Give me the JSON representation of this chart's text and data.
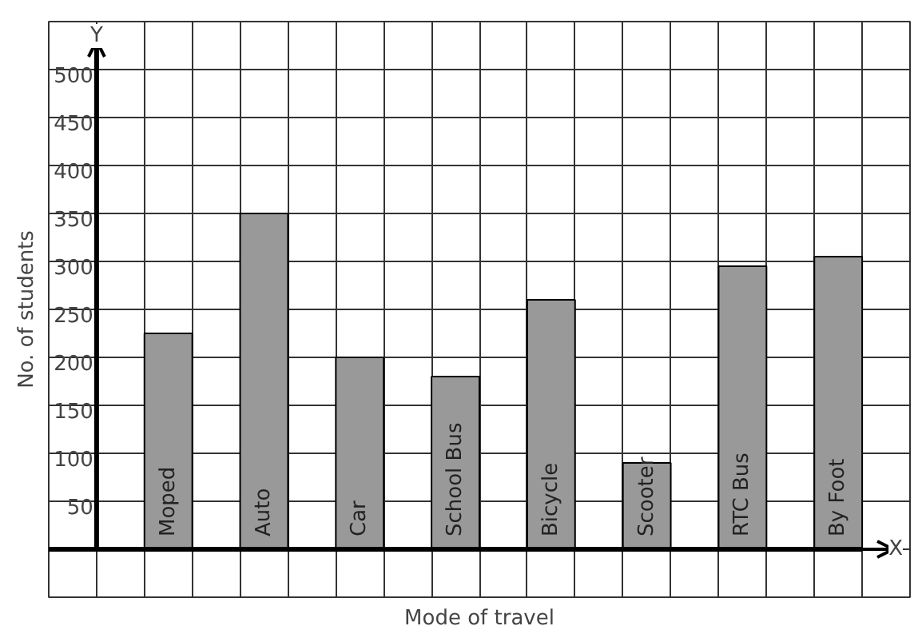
{
  "chart_data": {
    "type": "bar",
    "xlabel": "Mode of travel",
    "ylabel": "No. of students",
    "categories": [
      "Moped",
      "Auto",
      "Car",
      "School Bus",
      "Bicycle",
      "Scooter",
      "RTC Bus",
      "By Foot"
    ],
    "values": [
      225,
      350,
      200,
      180,
      260,
      90,
      295,
      305
    ],
    "color": "#999999",
    "ylim": [
      -50,
      550
    ],
    "yticks": [
      {
        "value": -50,
        "label": null
      },
      {
        "value": 0,
        "label": null
      },
      50,
      100,
      150,
      200,
      250,
      300,
      350,
      400,
      450,
      500,
      {
        "value": 550,
        "label": null
      }
    ],
    "grid": true,
    "annotations": [
      "Y",
      "X"
    ]
  }
}
